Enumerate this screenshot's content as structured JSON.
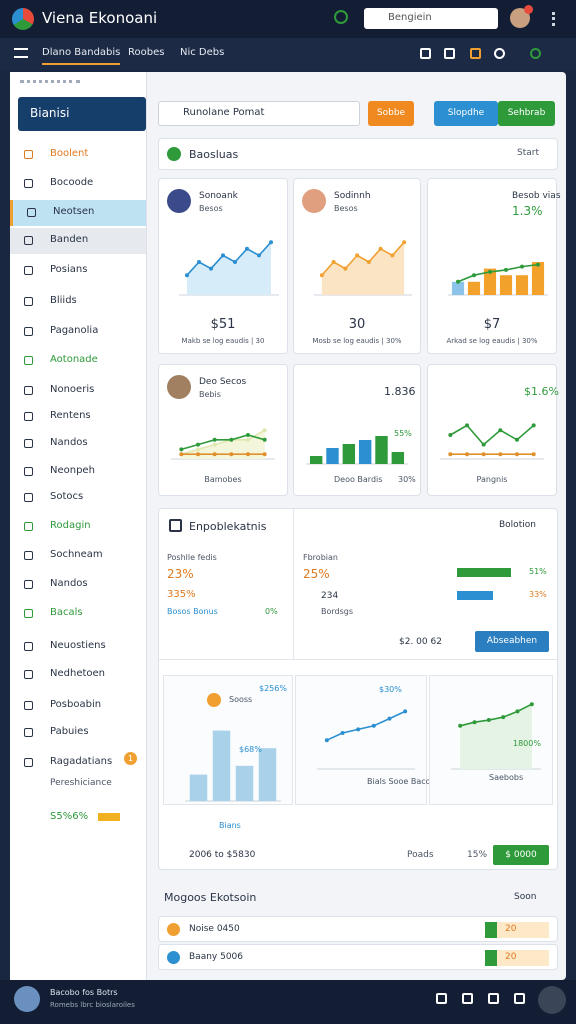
{
  "header": {
    "title": "Viena Ekonoani",
    "search": "Bengiein"
  },
  "nav": {
    "tabs": [
      "Dlano Bandabis",
      "Roobes",
      "Nic Debs"
    ]
  },
  "sidebar": {
    "section": "Bianisi",
    "items": [
      "Boolent",
      "Bocoode",
      "Neotsen",
      "Banden",
      "Posians",
      "Bliids",
      "Paganolia",
      "Aotonade",
      "Nonoeris",
      "Rentens",
      "Nandos",
      "Neonpeh",
      "Sotocs",
      "Rodagin",
      "Sochneam",
      "Nandos",
      "Bacals",
      "Neuostiens",
      "Nedhetoen",
      "Posboabin",
      "Pabuies",
      "Ragadatians"
    ],
    "badge": "1",
    "footer_label": "Pereshiciance",
    "footer_value": "S5%6%"
  },
  "toolbar": {
    "search": "Runolane Pomat",
    "buttons": [
      "Sobbe",
      "Slopdhe",
      "Sehbrab"
    ]
  },
  "panel1": {
    "title": "Baosluas",
    "action": "Start",
    "cards": [
      {
        "name": "Sonoank",
        "sub": "Besos",
        "value": "$51",
        "caption": "Makb se log eaudis | 30",
        "chart": {
          "ylim": [
            0,
            10
          ],
          "series": [
            {
              "type": "line",
              "color": "#2b8fd1",
              "fill": "#d6ecf8",
              "values": [
                3,
                5,
                4,
                6,
                5,
                7,
                6,
                8
              ]
            }
          ]
        }
      },
      {
        "name": "Sodinnh",
        "sub": "Besos",
        "value": "30",
        "caption": "Mosb se log eaudis | 30%",
        "chart": {
          "ylim": [
            0,
            10
          ],
          "series": [
            {
              "type": "line",
              "color": "#f0a030",
              "fill": "#fbe4c4",
              "values": [
                3,
                5,
                4,
                6,
                5,
                7,
                6,
                8
              ]
            }
          ]
        }
      },
      {
        "name": "Besob vias",
        "sub": "1.3%",
        "value": "$7",
        "caption": "Arkad se log eaudis | 30%",
        "chart": {
          "ylim": [
            0,
            10
          ],
          "series": [
            {
              "type": "bar",
              "colors": [
                "#8cc3e8",
                "#f2a22a",
                "#f2a22a",
                "#f2a22a",
                "#f2a22a",
                "#f2a22a"
              ],
              "values": [
                2,
                2,
                4,
                3,
                3,
                5
              ]
            },
            {
              "type": "line",
              "color": "#2e9a3a",
              "values": [
                2,
                3,
                3.5,
                3.8,
                4.3,
                4.6
              ]
            }
          ]
        }
      }
    ]
  },
  "panel2": {
    "cards": [
      {
        "name": "Deo Secos",
        "sub": "Bebis",
        "caption": "Bamobes",
        "chart": {
          "ylim": [
            0,
            10
          ],
          "series": [
            {
              "type": "line",
              "color": "#e1e7b0",
              "fill": "#f4f6dc",
              "values": [
                1,
                2,
                3,
                4,
                4,
                6
              ]
            },
            {
              "type": "line",
              "color": "#2e9a3a",
              "values": [
                2,
                3,
                4,
                4,
                5,
                4
              ]
            },
            {
              "type": "line",
              "color": "#e0902a",
              "values": [
                1,
                1,
                1,
                1,
                1,
                1
              ]
            }
          ]
        }
      },
      {
        "name": "1.836",
        "sub": "55%",
        "caption": "Deoo Bardis",
        "caption2": "30%",
        "chart": {
          "ylim": [
            0,
            10
          ],
          "series": [
            {
              "type": "bar",
              "colors": [
                "#2e9a3a",
                "#2b8fd1",
                "#2e9a3a",
                "#2b8fd1",
                "#2e9a3a",
                "#2e9a3a"
              ],
              "values": [
                2,
                4,
                5,
                6,
                7,
                3
              ]
            }
          ]
        }
      },
      {
        "name": "$1.6%",
        "sub": "",
        "caption": "Pangnis",
        "chart": {
          "ylim": [
            0,
            10
          ],
          "series": [
            {
              "type": "line",
              "color": "#2e9a3a",
              "values": [
                5,
                7,
                3,
                6,
                4,
                7
              ]
            },
            {
              "type": "line",
              "color": "#e0902a",
              "values": [
                1,
                1,
                1,
                1,
                1,
                1
              ]
            }
          ]
        }
      }
    ]
  },
  "panel3": {
    "title": "Enpoblekatnis",
    "action": "Bolotion",
    "left": {
      "label": "Poshlle fedis",
      "v1": "23%",
      "v2": "335%",
      "v3": "Bosos Bonus",
      "v4": "0%"
    },
    "mid": {
      "label": "Fbrobian",
      "v1": "25%",
      "v2": "234",
      "v3": "Bordsgs",
      "bars": {
        "ylim": [
          0,
          10
        ],
        "labels": [
          "51%",
          "33%"
        ],
        "values": [
          9,
          6
        ]
      },
      "amount": "$2. 00 62",
      "button": "Abseabhen"
    },
    "charts": [
      {
        "label": "Sooss",
        "l2": "$256%",
        "l3": "$68%",
        "foot": "Bians",
        "chart": {
          "ylim": [
            0,
            10
          ],
          "series": [
            {
              "type": "bar",
              "colors": [
                "#a9d2ea",
                "#a9d2ea",
                "#a9d2ea",
                "#a9d2ea"
              ],
              "values": [
                3,
                8,
                4,
                6
              ]
            }
          ]
        }
      },
      {
        "label": "Bials Sooe Bacoos",
        "l2": "$30%",
        "chart": {
          "ylim": [
            0,
            10
          ],
          "series": [
            {
              "type": "line",
              "color": "#2b8fd1",
              "values": [
                4,
                5,
                5.5,
                6,
                7,
                8
              ]
            }
          ]
        }
      },
      {
        "label": "Saebobs",
        "l2": "1800%",
        "chart": {
          "ylim": [
            0,
            10
          ],
          "series": [
            {
              "type": "line",
              "color": "#2e9a3a",
              "fill": "#e4f3e4",
              "values": [
                6,
                6.5,
                6.8,
                7.2,
                8,
                9
              ]
            }
          ]
        }
      }
    ],
    "footer": [
      "2006 to $5830",
      "Poads",
      "15%",
      "$ 0000"
    ]
  },
  "panel4": {
    "title": "Mogoos Ekotsoin",
    "action": "Soon",
    "rows": [
      [
        "Noise 0450",
        "20"
      ],
      [
        "Baany 5006",
        "20"
      ]
    ]
  },
  "bottom": {
    "name": "Bacobo fos Botrs",
    "sub": "Romebs lbrc bioslaroiles"
  }
}
